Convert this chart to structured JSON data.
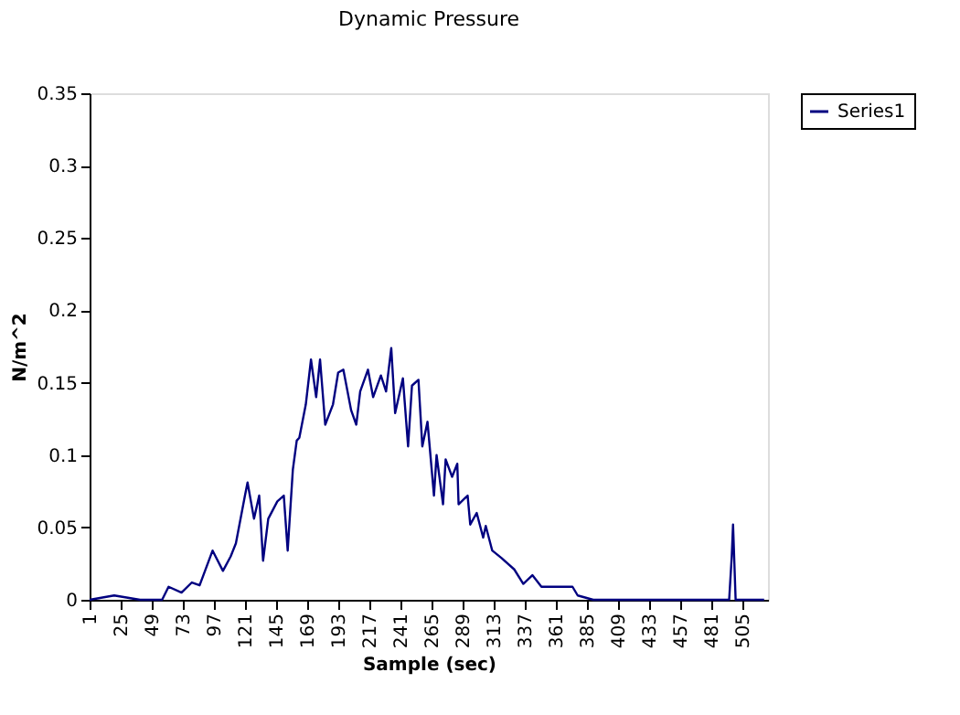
{
  "chart_data": {
    "type": "line",
    "title": "Dynamic Pressure",
    "xlabel": "Sample (sec)",
    "ylabel": "N/m^2",
    "x": [
      1,
      20,
      40,
      57,
      62,
      72,
      80,
      86,
      96,
      104,
      110,
      114,
      121,
      123,
      128,
      132,
      135,
      139,
      146,
      151,
      154,
      158,
      161,
      163,
      168,
      172,
      176,
      179,
      183,
      189,
      193,
      197,
      203,
      207,
      210,
      216,
      220,
      226,
      230,
      234,
      237,
      243,
      247,
      250,
      255,
      258,
      262,
      267,
      269,
      274,
      276,
      281,
      285,
      286,
      293,
      295,
      300,
      305,
      307,
      312,
      319,
      329,
      336,
      343,
      350,
      361,
      374,
      378,
      390,
      425,
      481,
      495,
      497,
      498,
      500,
      522
    ],
    "series": [
      {
        "name": "Series1",
        "color": "#000080",
        "values": [
          0,
          0.003,
          0,
          0,
          0.009,
          0.005,
          0.012,
          0.01,
          0.034,
          0.02,
          0.03,
          0.039,
          0.072,
          0.081,
          0.056,
          0.072,
          0.027,
          0.056,
          0.068,
          0.072,
          0.034,
          0.09,
          0.11,
          0.112,
          0.135,
          0.166,
          0.14,
          0.166,
          0.121,
          0.135,
          0.157,
          0.159,
          0.131,
          0.121,
          0.144,
          0.159,
          0.14,
          0.155,
          0.144,
          0.174,
          0.129,
          0.153,
          0.106,
          0.148,
          0.152,
          0.106,
          0.123,
          0.072,
          0.1,
          0.066,
          0.097,
          0.085,
          0.094,
          0.066,
          0.072,
          0.052,
          0.06,
          0.043,
          0.051,
          0.034,
          0.029,
          0.021,
          0.011,
          0.017,
          0.009,
          0.009,
          0.009,
          0.003,
          0,
          0,
          0,
          0,
          0.03,
          0.052,
          0,
          0
        ]
      }
    ],
    "xlim": [
      1,
      525
    ],
    "xticks": [
      1,
      25,
      49,
      73,
      97,
      121,
      145,
      169,
      193,
      217,
      241,
      265,
      289,
      313,
      337,
      361,
      385,
      409,
      433,
      457,
      481,
      505
    ],
    "ylim": [
      0,
      0.35
    ],
    "yticks": [
      0,
      0.05,
      0.1,
      0.15,
      0.2,
      0.25,
      0.3,
      0.35
    ],
    "grid": false,
    "legend": "right"
  }
}
